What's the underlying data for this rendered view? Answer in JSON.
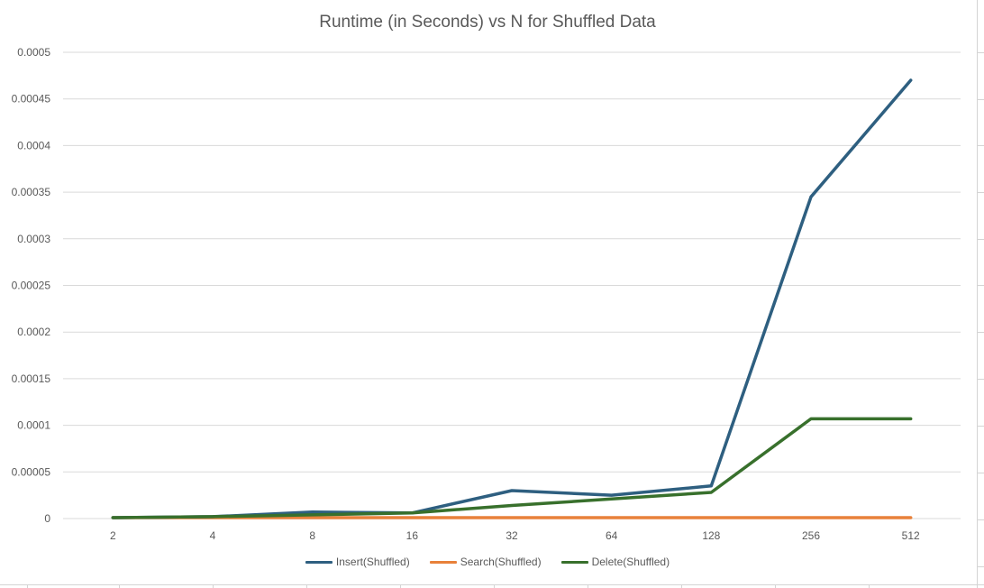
{
  "chart_data": {
    "type": "line",
    "title": "Runtime (in Seconds) vs N for Shuffled Data",
    "categories": [
      "2",
      "4",
      "8",
      "16",
      "32",
      "64",
      "128",
      "256",
      "512"
    ],
    "yticks": [
      "0",
      "0.00005",
      "0.0001",
      "0.00015",
      "0.0002",
      "0.00025",
      "0.0003",
      "0.00035",
      "0.0004",
      "0.00045",
      "0.0005"
    ],
    "ylim": [
      0,
      0.0005
    ],
    "grid": true,
    "legend_position": "bottom",
    "series": [
      {
        "name": "Insert(Shuffled)",
        "color": "#2e5f80",
        "values": [
          1e-06,
          2e-06,
          7e-06,
          6e-06,
          3e-05,
          2.5e-05,
          3.5e-05,
          0.000345,
          0.00047
        ]
      },
      {
        "name": "Search(Shuffled)",
        "color": "#e8813a",
        "values": [
          1e-06,
          1e-06,
          1e-06,
          1e-06,
          1e-06,
          1e-06,
          1e-06,
          1e-06,
          1e-06
        ]
      },
      {
        "name": "Delete(Shuffled)",
        "color": "#38702c",
        "values": [
          1e-06,
          2e-06,
          4e-06,
          6e-06,
          1.4e-05,
          2.1e-05,
          2.8e-05,
          0.000107,
          0.000107
        ]
      }
    ]
  }
}
